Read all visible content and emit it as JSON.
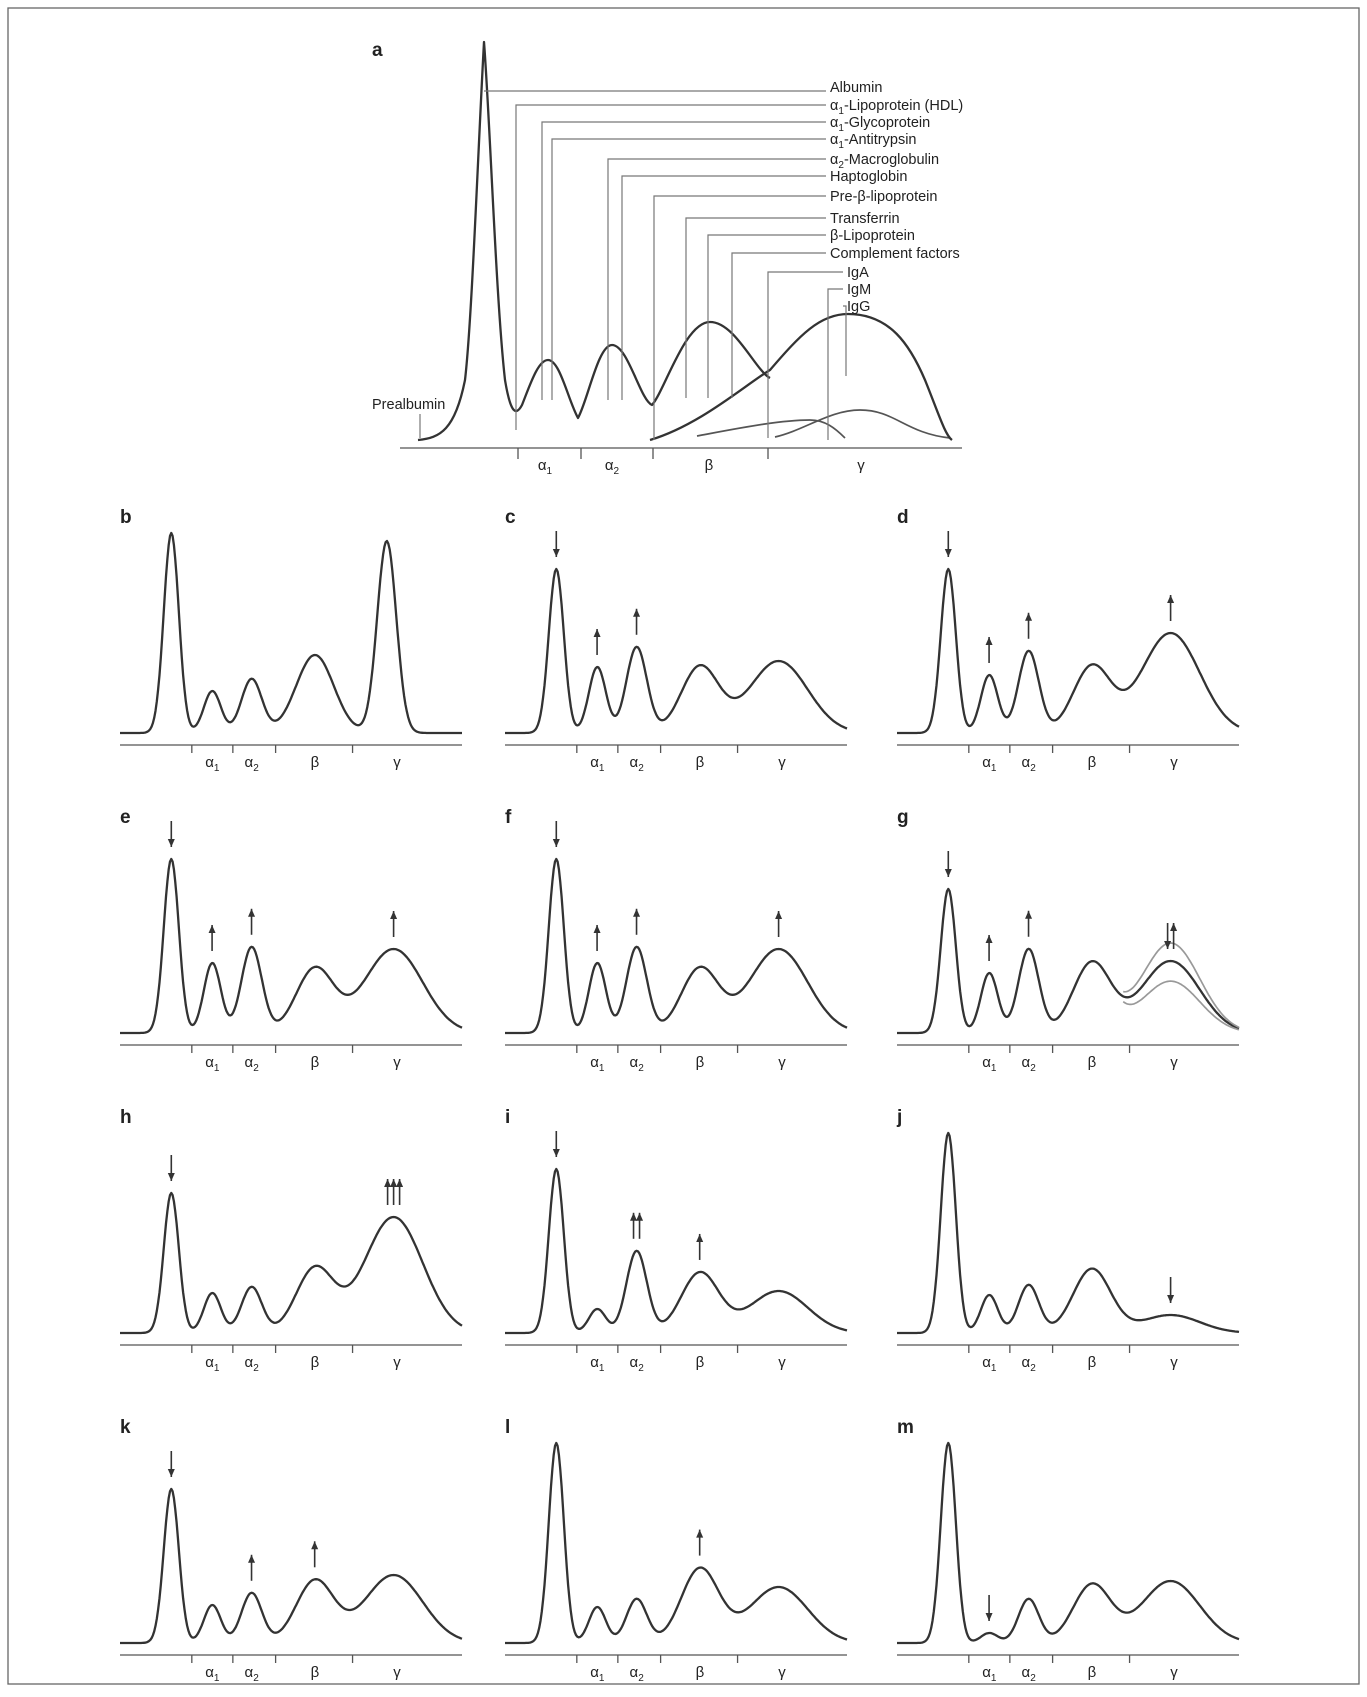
{
  "main_panel": {
    "letter": "a",
    "proteins": [
      "Albumin",
      "α1-Lipoprotein (HDL)",
      "α1-Glycoprotein",
      "α1-Antitrypsin",
      "α2-Macroglobulin",
      "Haptoglobin",
      "Pre-β-lipoprotein",
      "Transferrin",
      "β-Lipoprotein",
      "Complement factors",
      "IgA",
      "IgM",
      "IgG"
    ],
    "prealbumin": "Prealbumin",
    "fractions": [
      "α1",
      "α2",
      "β",
      "γ"
    ]
  },
  "fraction_labels": {
    "a1": "α",
    "a1_sub": "1",
    "a2": "α",
    "a2_sub": "2",
    "b": "β",
    "g": "γ"
  },
  "small_panels": [
    {
      "letter": "b",
      "peaks": {
        "alb": 1.0,
        "a1": 0.21,
        "a2": 0.27,
        "b": 0.39,
        "g": 0.96,
        "g_width": 0.28
      },
      "arrows": []
    },
    {
      "letter": "c",
      "peaks": {
        "alb": 0.82,
        "a1": 0.33,
        "a2": 0.43,
        "b": 0.33,
        "g": 0.36
      },
      "arrows": [
        {
          "target": "alb",
          "dir": "down",
          "count": 1
        },
        {
          "target": "a1",
          "dir": "up",
          "count": 1
        },
        {
          "target": "a2",
          "dir": "up",
          "count": 1
        }
      ]
    },
    {
      "letter": "d",
      "peaks": {
        "alb": 0.82,
        "a1": 0.29,
        "a2": 0.41,
        "b": 0.33,
        "g": 0.5
      },
      "arrows": [
        {
          "target": "alb",
          "dir": "down",
          "count": 1
        },
        {
          "target": "a1",
          "dir": "up",
          "count": 1
        },
        {
          "target": "a2",
          "dir": "up",
          "count": 1
        },
        {
          "target": "g",
          "dir": "up",
          "count": 1
        }
      ]
    },
    {
      "letter": "e",
      "peaks": {
        "alb": 0.87,
        "a1": 0.35,
        "a2": 0.43,
        "b": 0.32,
        "g": 0.42
      },
      "arrows": [
        {
          "target": "alb",
          "dir": "down",
          "count": 1
        },
        {
          "target": "a1",
          "dir": "up",
          "count": 1
        },
        {
          "target": "a2",
          "dir": "up",
          "count": 1
        },
        {
          "target": "g",
          "dir": "up",
          "count": 1
        }
      ]
    },
    {
      "letter": "f",
      "peaks": {
        "alb": 0.87,
        "a1": 0.35,
        "a2": 0.43,
        "b": 0.32,
        "g": 0.42
      },
      "arrows": [
        {
          "target": "alb",
          "dir": "down",
          "count": 1
        },
        {
          "target": "a1",
          "dir": "up",
          "count": 1
        },
        {
          "target": "a2",
          "dir": "up",
          "count": 1
        },
        {
          "target": "g",
          "dir": "up",
          "count": 1
        }
      ]
    },
    {
      "letter": "g",
      "peaks": {
        "alb": 0.72,
        "a1": 0.3,
        "a2": 0.42,
        "b": 0.35,
        "g": 0.36
      },
      "arrows": [
        {
          "target": "alb",
          "dir": "down",
          "count": 1
        },
        {
          "target": "a1",
          "dir": "up",
          "count": 1
        },
        {
          "target": "a2",
          "dir": "up",
          "count": 1
        },
        {
          "target": "g",
          "dir": "updown",
          "count": 1
        }
      ],
      "gamma_variants": true
    },
    {
      "letter": "h",
      "peaks": {
        "alb": 0.7,
        "a1": 0.2,
        "a2": 0.23,
        "b": 0.32,
        "g": 0.58
      },
      "arrows": [
        {
          "target": "alb",
          "dir": "down",
          "count": 1
        },
        {
          "target": "g",
          "dir": "up",
          "count": 3
        }
      ]
    },
    {
      "letter": "i",
      "peaks": {
        "alb": 0.82,
        "a1": 0.12,
        "a2": 0.41,
        "b": 0.3,
        "g": 0.21
      },
      "arrows": [
        {
          "target": "alb",
          "dir": "down",
          "count": 1
        },
        {
          "target": "a2",
          "dir": "up",
          "count": 2
        },
        {
          "target": "b",
          "dir": "up",
          "count": 1
        }
      ]
    },
    {
      "letter": "j",
      "peaks": {
        "alb": 1.0,
        "a1": 0.19,
        "a2": 0.24,
        "b": 0.32,
        "g": 0.09
      },
      "arrows": [
        {
          "target": "g",
          "dir": "down",
          "count": 1
        }
      ]
    },
    {
      "letter": "k",
      "peaks": {
        "alb": 0.77,
        "a1": 0.19,
        "a2": 0.25,
        "b": 0.31,
        "g": 0.34
      },
      "arrows": [
        {
          "target": "alb",
          "dir": "down",
          "count": 1
        },
        {
          "target": "a2",
          "dir": "up",
          "count": 1
        },
        {
          "target": "b",
          "dir": "up",
          "count": 1
        }
      ]
    },
    {
      "letter": "l",
      "peaks": {
        "alb": 1.0,
        "a1": 0.18,
        "a2": 0.22,
        "b": 0.37,
        "g": 0.28
      },
      "arrows": [
        {
          "target": "b",
          "dir": "up",
          "count": 1
        }
      ]
    },
    {
      "letter": "m",
      "peaks": {
        "alb": 1.0,
        "a1": 0.05,
        "a2": 0.22,
        "b": 0.29,
        "g": 0.31
      },
      "arrows": [
        {
          "target": "a1",
          "dir": "down",
          "count": 1
        }
      ]
    }
  ]
}
